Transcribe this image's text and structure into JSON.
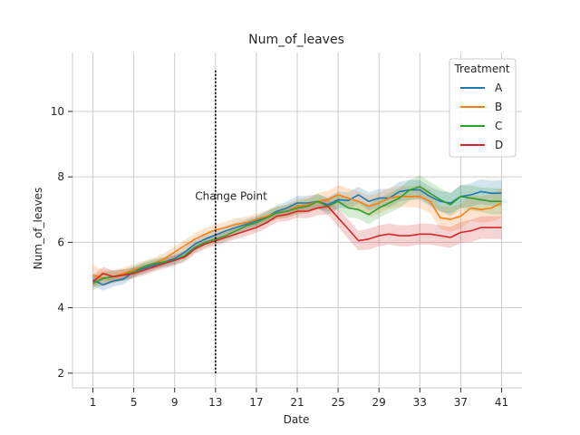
{
  "chart_data": {
    "type": "line",
    "title": "Num_of_leaves",
    "xlabel": "Date",
    "ylabel": "Num_of_leaves",
    "xlim": [
      -1,
      43
    ],
    "ylim": [
      1.55,
      11.8
    ],
    "xticks": [
      1,
      5,
      9,
      13,
      17,
      21,
      25,
      29,
      33,
      37,
      41
    ],
    "yticks": [
      2,
      4,
      6,
      8,
      10
    ],
    "grid": true,
    "legend": {
      "title": "Treatment",
      "placement": "top-right"
    },
    "annotation": {
      "text": "Change Point",
      "x": 13,
      "text_x": 11,
      "text_y": 7.3,
      "line_y": [
        2,
        11.3
      ]
    },
    "x": [
      1,
      2,
      3,
      4,
      5,
      6,
      7,
      8,
      9,
      10,
      11,
      12,
      13,
      14,
      15,
      16,
      17,
      18,
      19,
      20,
      21,
      22,
      23,
      24,
      25,
      26,
      27,
      28,
      29,
      30,
      31,
      32,
      33,
      34,
      35,
      36,
      37,
      38,
      39,
      40,
      41
    ],
    "series": [
      {
        "name": "A",
        "color": "#1f77b4",
        "values": [
          4.85,
          4.7,
          4.82,
          4.88,
          5.1,
          5.2,
          5.3,
          5.4,
          5.5,
          5.7,
          5.95,
          6.1,
          6.22,
          6.35,
          6.45,
          6.55,
          6.65,
          6.78,
          6.95,
          7.05,
          7.2,
          7.2,
          7.25,
          7.15,
          7.3,
          7.28,
          7.45,
          7.25,
          7.35,
          7.35,
          7.55,
          7.6,
          7.6,
          7.4,
          7.25,
          7.2,
          7.4,
          7.45,
          7.55,
          7.5,
          7.5
        ],
        "ci_width": [
          0.18,
          0.18,
          0.17,
          0.17,
          0.16,
          0.16,
          0.15,
          0.15,
          0.15,
          0.15,
          0.15,
          0.15,
          0.15,
          0.16,
          0.16,
          0.16,
          0.16,
          0.17,
          0.18,
          0.2,
          0.22,
          0.22,
          0.22,
          0.22,
          0.25,
          0.25,
          0.25,
          0.28,
          0.28,
          0.28,
          0.3,
          0.3,
          0.3,
          0.3,
          0.32,
          0.32,
          0.35,
          0.35,
          0.38,
          0.38,
          0.4
        ]
      },
      {
        "name": "B",
        "color": "#ff7f0e",
        "values": [
          5.0,
          4.9,
          4.95,
          5.05,
          5.15,
          5.25,
          5.35,
          5.5,
          5.7,
          5.9,
          6.1,
          6.25,
          6.38,
          6.45,
          6.55,
          6.6,
          6.7,
          6.8,
          6.9,
          6.95,
          7.1,
          7.15,
          7.25,
          7.3,
          7.45,
          7.35,
          7.25,
          7.1,
          7.2,
          7.35,
          7.4,
          7.4,
          7.4,
          7.25,
          6.75,
          6.7,
          6.8,
          7.05,
          7.0,
          7.05,
          7.2
        ],
        "ci_width": [
          0.3,
          0.25,
          0.2,
          0.18,
          0.18,
          0.18,
          0.18,
          0.18,
          0.18,
          0.18,
          0.18,
          0.18,
          0.18,
          0.18,
          0.18,
          0.18,
          0.18,
          0.18,
          0.2,
          0.2,
          0.22,
          0.22,
          0.25,
          0.28,
          0.3,
          0.3,
          0.3,
          0.32,
          0.32,
          0.32,
          0.32,
          0.32,
          0.35,
          0.35,
          0.35,
          0.38,
          0.38,
          0.4,
          0.4,
          0.42,
          0.45
        ]
      },
      {
        "name": "C",
        "color": "#2ca02c",
        "values": [
          4.75,
          4.9,
          4.95,
          5.0,
          5.1,
          5.25,
          5.35,
          5.4,
          5.45,
          5.6,
          5.85,
          6.0,
          6.1,
          6.2,
          6.35,
          6.5,
          6.6,
          6.75,
          6.9,
          6.95,
          7.05,
          7.1,
          7.25,
          7.1,
          7.25,
          7.05,
          7.0,
          6.85,
          7.05,
          7.2,
          7.35,
          7.6,
          7.7,
          7.5,
          7.3,
          7.15,
          7.4,
          7.35,
          7.3,
          7.25,
          7.25
        ],
        "ci_width": [
          0.22,
          0.2,
          0.18,
          0.17,
          0.16,
          0.16,
          0.15,
          0.15,
          0.15,
          0.15,
          0.15,
          0.15,
          0.15,
          0.15,
          0.16,
          0.16,
          0.17,
          0.18,
          0.18,
          0.2,
          0.2,
          0.22,
          0.22,
          0.25,
          0.25,
          0.28,
          0.28,
          0.3,
          0.3,
          0.3,
          0.3,
          0.32,
          0.35,
          0.35,
          0.35,
          0.35,
          0.35,
          0.38,
          0.38,
          0.4,
          0.4
        ]
      },
      {
        "name": "D",
        "color": "#d62728",
        "values": [
          4.8,
          5.05,
          4.95,
          5.0,
          5.05,
          5.15,
          5.25,
          5.35,
          5.45,
          5.55,
          5.8,
          5.95,
          6.05,
          6.15,
          6.25,
          6.35,
          6.45,
          6.6,
          6.8,
          6.85,
          6.95,
          6.95,
          7.05,
          7.1,
          6.75,
          6.4,
          6.05,
          6.1,
          6.2,
          6.25,
          6.2,
          6.2,
          6.25,
          6.25,
          6.2,
          6.15,
          6.3,
          6.35,
          6.45,
          6.45,
          6.45
        ],
        "ci_width": [
          0.2,
          0.2,
          0.18,
          0.17,
          0.16,
          0.16,
          0.15,
          0.15,
          0.15,
          0.15,
          0.15,
          0.15,
          0.15,
          0.15,
          0.15,
          0.16,
          0.16,
          0.17,
          0.18,
          0.2,
          0.2,
          0.22,
          0.22,
          0.25,
          0.28,
          0.3,
          0.3,
          0.32,
          0.32,
          0.32,
          0.32,
          0.32,
          0.32,
          0.32,
          0.32,
          0.32,
          0.32,
          0.34,
          0.34,
          0.35,
          0.35
        ]
      }
    ],
    "colors": {
      "grid": "#cccccc",
      "axis": "#cccccc",
      "text": "#262626",
      "annotation_line": "#000000",
      "background": "#ffffff"
    }
  }
}
